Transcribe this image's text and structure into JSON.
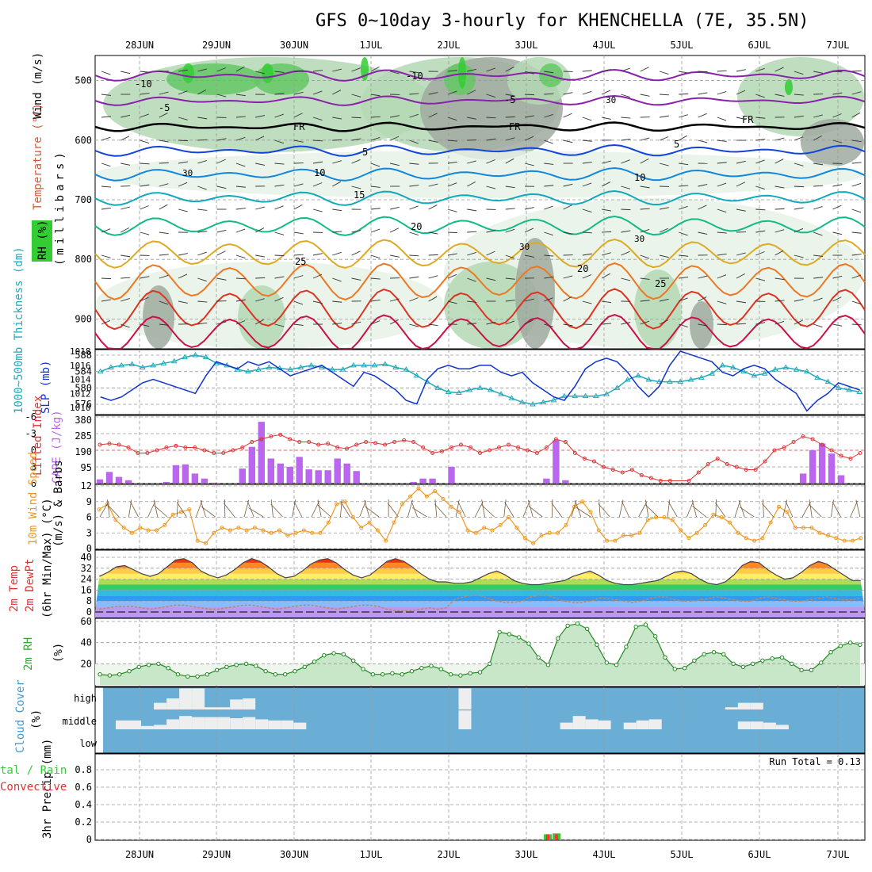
{
  "title": "GFS 0~10day 3-hourly for KHENCHELLA (7E, 35.5N)",
  "dates": [
    "28JUN",
    "29JUN",
    "30JUN",
    "1JUL",
    "2JUL",
    "3JUL",
    "4JUL",
    "5JUL",
    "6JUL",
    "7JUL"
  ],
  "colors": {
    "rh_green": "#33cc33",
    "rh_light": "#e6f2e6",
    "rh_mid": "#b4d8b4",
    "rh_dark": "#64c864",
    "rh_dark2": "#a0aaa0",
    "cape_bar": "#bb66ee",
    "lifted_index": "#dd3333",
    "thickness": "#22aabb",
    "slp": "#1133cc",
    "wind_speed": "#ee9922",
    "cloud_bg": "#6aaed6",
    "cloud_bar": "#eeeeee",
    "rain": "#33cc33",
    "convective": "#ff3333"
  },
  "labels": {
    "main_left": [
      "RH (%)",
      "Temperature (°C)",
      "Wind (m/s)"
    ],
    "main_millibars": "(millibars)",
    "fr_label": "FR",
    "thickness_label": "1000~500mb Thickness (dm)",
    "slp_label": "SLP (mb)",
    "lifted_label": "Lifted Index",
    "cape_label": "CAPE (J/kg)",
    "wind10_label1": "10m Wind Speed",
    "wind10_label2": "(m/s) & Barbs",
    "temp2m_label1": "2m Temp",
    "temp2m_label2": "2m DewPt",
    "temp2m_label3": "(6hr Min/Max) (°C)",
    "rh2m_label": "2m RH",
    "rh2m_unit": "(%)",
    "cloud_label": "Cloud Cover",
    "cloud_unit": "(%)",
    "cloud_levels": [
      "high",
      "middle",
      "low"
    ],
    "precip_label": "3hr Precip (mm)",
    "rain_label": "tal / Rain",
    "convective_label": "Convective",
    "run_total": "Run Total = 0.13"
  },
  "chart_data": [
    {
      "type": "area",
      "panel": "Pressure-time cross section: RH, Temperature, Wind",
      "ylabel": "millibars",
      "y_ticks": [
        500,
        600,
        700,
        800,
        900
      ],
      "ylim": [
        950,
        450
      ],
      "temperature_contour_labels": [
        "-10",
        "-10",
        "-5",
        "-5",
        "FR",
        "FR",
        "FR",
        "5",
        "5",
        "10",
        "10",
        "15",
        "20",
        "20",
        "25",
        "25"
      ],
      "rh_contour_labels": [
        "30",
        "30",
        "30",
        "30"
      ]
    },
    {
      "type": "line",
      "panel": "1000~500mb Thickness (dm) and SLP (mb)",
      "y_ticks_left": [
        576,
        580,
        584,
        588
      ],
      "y_ticks_right": [
        1010,
        1012,
        1014,
        1016,
        1018
      ],
      "series": [
        {
          "name": "1000~500mb Thickness (dm)",
          "values": [
            584.0,
            585.0,
            585.5,
            585.8,
            585.0,
            585.5,
            586.0,
            586.5,
            587.5,
            588.0,
            587.5,
            586.0,
            585.5,
            584.5,
            584.0,
            584.5,
            585.0,
            584.8,
            584.5,
            585.0,
            585.5,
            585.0,
            584.5,
            584.5,
            585.5,
            585.5,
            585.5,
            585.8,
            585.0,
            584.5,
            583.0,
            581.5,
            580.0,
            579.0,
            578.8,
            579.5,
            580.0,
            579.5,
            578.5,
            577.5,
            576.5,
            576.0,
            576.5,
            577.0,
            578.0,
            578.0,
            578.0,
            578.0,
            578.5,
            580.0,
            582.0,
            583.0,
            582.0,
            581.5,
            581.5,
            581.5,
            582.0,
            582.5,
            583.5,
            585.5,
            585.0,
            584.0,
            583.0,
            583.5,
            584.5,
            585.0,
            584.5,
            584.0,
            582.5,
            581.5,
            580.0,
            579.5,
            579.0
          ]
        },
        {
          "name": "SLP (mb)",
          "values": [
            1011.5,
            1011.0,
            1011.5,
            1012.5,
            1013.5,
            1014.0,
            1013.5,
            1013.0,
            1012.5,
            1012.0,
            1014.5,
            1016.5,
            1016.0,
            1015.5,
            1016.5,
            1016.0,
            1016.5,
            1015.5,
            1014.5,
            1015.0,
            1015.5,
            1016.0,
            1015.0,
            1014.0,
            1013.0,
            1015.0,
            1014.5,
            1013.5,
            1012.5,
            1011.0,
            1010.5,
            1014.0,
            1015.5,
            1016.0,
            1015.5,
            1015.5,
            1016.0,
            1016.0,
            1015.0,
            1014.5,
            1015.0,
            1013.5,
            1012.5,
            1011.5,
            1011.0,
            1013.0,
            1015.5,
            1016.5,
            1017.0,
            1016.5,
            1015.0,
            1013.0,
            1011.5,
            1013.0,
            1016.0,
            1018.0,
            1017.5,
            1017.0,
            1016.5,
            1015.0,
            1014.5,
            1015.5,
            1016.0,
            1015.5,
            1014.0,
            1013.0,
            1012.0,
            1009.5,
            1011.0,
            1012.0,
            1013.5,
            1013.0,
            1012.5
          ]
        }
      ]
    },
    {
      "type": "bar",
      "panel": "Lifted Index and CAPE (J/kg)",
      "y_ticks_lifted": [
        -6,
        -3,
        0,
        3,
        6
      ],
      "y_ticks_cape": [
        95,
        190,
        285,
        380
      ],
      "series": [
        {
          "name": "Lifted Index",
          "values": [
            -1.0,
            -1.2,
            -1.0,
            -0.5,
            0.5,
            0.5,
            0.0,
            -0.5,
            -0.8,
            -0.5,
            -0.5,
            0.0,
            0.5,
            0.5,
            0.0,
            -0.5,
            -1.5,
            -2.0,
            -2.5,
            -2.8,
            -2.0,
            -1.5,
            -1.5,
            -1.0,
            -1.2,
            -0.5,
            -0.3,
            -1.0,
            -1.5,
            -1.3,
            -1.0,
            -1.5,
            -1.8,
            -1.5,
            -0.5,
            0.5,
            0.2,
            -0.5,
            -1.0,
            -0.5,
            0.5,
            0.0,
            -0.5,
            -1.0,
            -0.5,
            0.0,
            0.5,
            -0.5,
            -2.0,
            -1.5,
            0.5,
            1.5,
            2.0,
            3.0,
            3.5,
            4.0,
            3.5,
            4.5,
            5.0,
            5.5,
            5.5,
            6.0,
            5.5,
            4.0,
            2.5,
            1.5,
            2.5,
            3.0,
            3.5,
            3.5,
            2.0,
            0.0,
            -0.5,
            -1.5,
            -2.5,
            -2.0,
            -1.0,
            0.0,
            1.0,
            1.5,
            0.5
          ]
        },
        {
          "name": "CAPE (J/kg)",
          "values": [
            25,
            70,
            40,
            20,
            0,
            0,
            0,
            10,
            110,
            115,
            60,
            30,
            5,
            0,
            0,
            90,
            220,
            370,
            150,
            120,
            100,
            160,
            85,
            80,
            80,
            150,
            120,
            75,
            0,
            0,
            0,
            0,
            0,
            10,
            30,
            30,
            0,
            100,
            0,
            0,
            0,
            0,
            0,
            0,
            0,
            0,
            0,
            30,
            260,
            20,
            0,
            0,
            0,
            0,
            0,
            0,
            0,
            0,
            0,
            0,
            0,
            0,
            0,
            0,
            0,
            0,
            0,
            0,
            0,
            0,
            0,
            0,
            0,
            0,
            60,
            200,
            240,
            180,
            50,
            0,
            0
          ]
        }
      ]
    },
    {
      "type": "line",
      "panel": "10m Wind Speed (m/s) & Barbs",
      "y_ticks": [
        0,
        3,
        6,
        9,
        12
      ],
      "series": [
        {
          "name": "10m Wind Speed",
          "values": [
            7.5,
            8.5,
            5.5,
            4.0,
            3.0,
            4.0,
            3.5,
            3.5,
            4.5,
            6.5,
            7.0,
            7.5,
            1.5,
            1.0,
            3.0,
            4.0,
            3.5,
            4.0,
            3.5,
            4.0,
            3.5,
            3.0,
            3.5,
            2.5,
            3.0,
            3.5,
            3.0,
            3.0,
            5.0,
            8.5,
            9.0,
            6.0,
            4.0,
            5.0,
            3.5,
            1.5,
            5.0,
            8.5,
            10.0,
            11.5,
            10.0,
            11.0,
            9.5,
            8.0,
            7.0,
            3.5,
            3.0,
            4.0,
            3.5,
            4.5,
            6.0,
            4.0,
            2.0,
            1.0,
            2.5,
            3.0,
            3.0,
            4.5,
            8.0,
            9.0,
            7.0,
            3.5,
            1.5,
            1.5,
            2.5,
            2.5,
            3.0,
            5.5,
            6.0,
            6.0,
            5.5,
            3.5,
            2.0,
            3.0,
            4.5,
            6.5,
            6.0,
            5.0,
            3.0,
            2.0,
            1.5,
            2.0,
            5.0,
            8.0,
            7.0,
            4.0,
            4.0,
            4.0,
            3.0,
            2.5,
            2.0,
            1.5,
            1.5,
            2.0
          ]
        }
      ]
    },
    {
      "type": "area",
      "panel": "2m Temp, 2m DewPt (°C)",
      "y_ticks": [
        0,
        8,
        16,
        24,
        32,
        40
      ],
      "series": [
        {
          "name": "2m Temp",
          "values": [
            26,
            29,
            33,
            34,
            31,
            28,
            26,
            28,
            33,
            38,
            39,
            36,
            30,
            27,
            25,
            27,
            31,
            36,
            39,
            37,
            33,
            28,
            25,
            26,
            30,
            35,
            38,
            39,
            36,
            31,
            27,
            25,
            27,
            32,
            37,
            39,
            37,
            33,
            28,
            24,
            22,
            22,
            21,
            21,
            22,
            25,
            28,
            30,
            27,
            23,
            21,
            20,
            20,
            21,
            22,
            23,
            26,
            28,
            30,
            27,
            23,
            21,
            20,
            20,
            21,
            22,
            23,
            26,
            29,
            30,
            28,
            24,
            21,
            20,
            22,
            27,
            34,
            37,
            36,
            31,
            27,
            24,
            25,
            29,
            34,
            37,
            35,
            31,
            27,
            23,
            23
          ]
        },
        {
          "name": "2m DewPt",
          "values": [
            2,
            3,
            4,
            4,
            4,
            3,
            2,
            3,
            4,
            5,
            5,
            4,
            3,
            2,
            2,
            3,
            4,
            5,
            5,
            4,
            3,
            2,
            3,
            4,
            5,
            5,
            4,
            3,
            2,
            3,
            4,
            5,
            5,
            4,
            2,
            1,
            1,
            1,
            2,
            3,
            2,
            3,
            9,
            11,
            12,
            12,
            10,
            8,
            7,
            7,
            8,
            11,
            12,
            12,
            10,
            8,
            7,
            7,
            8,
            10,
            10,
            9,
            8,
            7,
            8,
            10,
            11,
            11,
            9,
            8,
            8,
            9,
            10,
            11,
            10,
            9,
            8,
            8,
            10,
            11,
            10,
            9,
            8,
            8,
            9,
            10,
            11,
            10,
            9,
            9,
            10
          ]
        }
      ]
    },
    {
      "type": "area",
      "panel": "2m RH (%)",
      "y_ticks": [
        20,
        40,
        60
      ],
      "series": [
        {
          "name": "2m RH",
          "values": [
            10,
            9,
            10,
            13,
            17,
            19,
            20,
            16,
            10,
            8,
            8,
            10,
            14,
            17,
            19,
            20,
            18,
            13,
            10,
            10,
            13,
            17,
            22,
            28,
            30,
            29,
            23,
            15,
            10,
            10,
            11,
            10,
            13,
            16,
            18,
            15,
            10,
            9,
            11,
            12,
            20,
            50,
            48,
            45,
            39,
            26,
            19,
            44,
            56,
            58,
            53,
            38,
            21,
            19,
            36,
            55,
            57,
            46,
            26,
            15,
            16,
            23,
            29,
            31,
            29,
            20,
            17,
            20,
            23,
            25,
            26,
            20,
            14,
            14,
            21,
            31,
            37,
            40,
            38
          ]
        }
      ]
    },
    {
      "type": "bar",
      "panel": "Cloud Cover (%)",
      "categories_levels": [
        "high",
        "middle",
        "low"
      ],
      "series": [
        {
          "name": "high",
          "values": [
            0,
            0,
            0,
            0,
            30,
            50,
            95,
            95,
            10,
            10,
            45,
            50,
            0,
            0,
            0,
            0,
            0,
            0,
            0,
            0,
            0,
            0,
            0,
            0,
            0,
            0,
            0,
            0,
            95,
            0,
            0,
            0,
            0,
            0,
            0,
            0,
            0,
            0,
            0,
            0,
            0,
            0,
            0,
            0,
            0,
            0,
            0,
            0,
            0,
            10,
            30,
            30,
            0,
            0,
            0,
            0,
            0,
            0,
            0,
            0,
            0,
            10
          ]
        },
        {
          "name": "middle",
          "values": [
            0,
            40,
            40,
            15,
            20,
            45,
            60,
            55,
            55,
            55,
            50,
            55,
            45,
            40,
            40,
            30,
            0,
            0,
            0,
            0,
            0,
            0,
            0,
            0,
            0,
            0,
            0,
            0,
            85,
            0,
            0,
            0,
            0,
            0,
            0,
            0,
            30,
            60,
            45,
            40,
            0,
            30,
            40,
            45,
            0,
            0,
            0,
            0,
            0,
            0,
            35,
            35,
            30,
            20,
            0,
            0,
            0,
            0,
            0,
            0
          ]
        }
      ]
    },
    {
      "type": "bar",
      "panel": "3hr Precip (mm)",
      "y_ticks": [
        0,
        0.2,
        0.4,
        0.6,
        0.8
      ],
      "series": [
        {
          "name": "Rain",
          "values": [
            0.06,
            0.07
          ]
        },
        {
          "name": "Convective",
          "values": [
            0.06,
            0.06
          ]
        }
      ],
      "run_total": 0.13
    }
  ]
}
